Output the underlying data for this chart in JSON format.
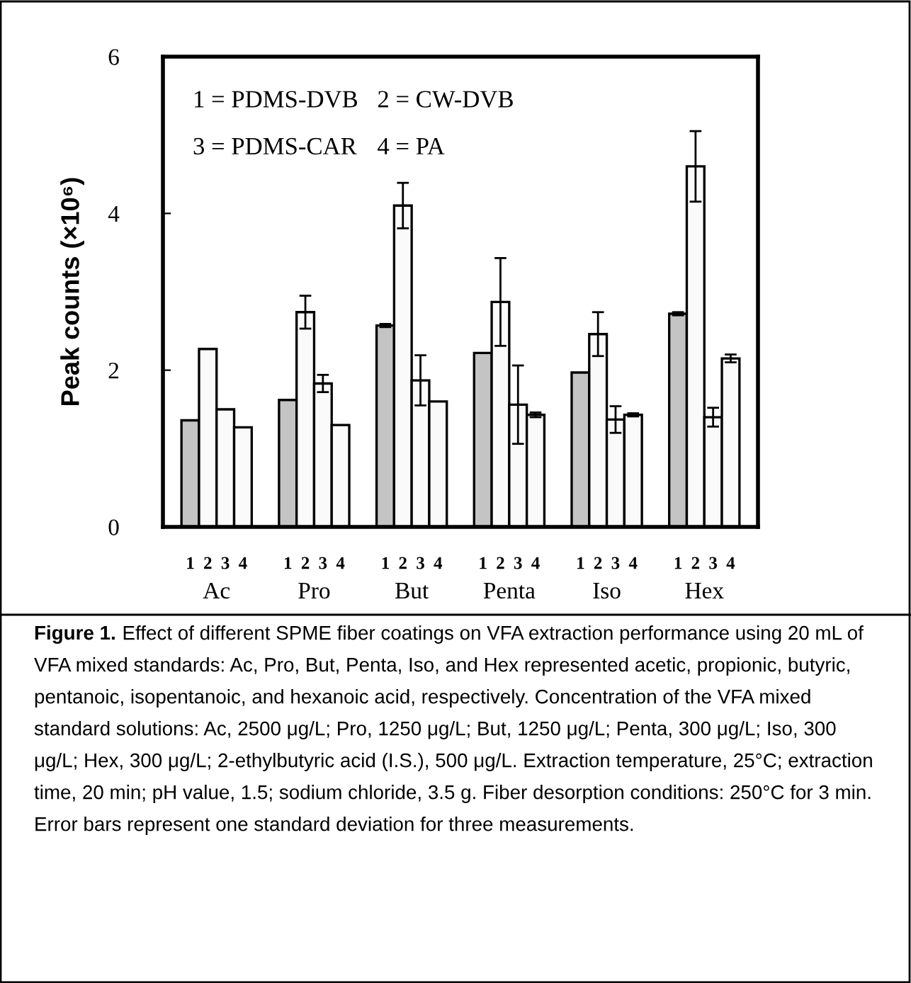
{
  "chart_data": {
    "type": "bar",
    "ylabel": "Peak counts (×10⁶)",
    "categories": [
      "Ac",
      "Pro",
      "But",
      "Penta",
      "Iso",
      "Hex"
    ],
    "series": [
      {
        "name": "1",
        "color": "#c4c4c4",
        "values": [
          1.36,
          1.62,
          2.57,
          2.22,
          1.97,
          2.72
        ],
        "errors": [
          null,
          null,
          0.02,
          null,
          null,
          0.02
        ]
      },
      {
        "name": "2",
        "color": "#fafafa",
        "values": [
          2.27,
          2.74,
          4.1,
          2.87,
          2.46,
          4.6
        ],
        "errors": [
          null,
          0.21,
          0.29,
          0.56,
          0.28,
          0.45
        ]
      },
      {
        "name": "3",
        "color": "#fafafa",
        "values": [
          1.5,
          1.83,
          1.87,
          1.56,
          1.37,
          1.4
        ],
        "errors": [
          null,
          0.11,
          0.32,
          0.5,
          0.17,
          0.12
        ]
      },
      {
        "name": "4",
        "color": "#fafafa",
        "values": [
          1.27,
          1.3,
          1.6,
          1.43,
          1.43,
          2.15
        ],
        "errors": [
          null,
          null,
          null,
          0.03,
          0.02,
          0.05
        ]
      }
    ],
    "ylim": [
      0,
      6
    ],
    "yticks": [
      0,
      2,
      4,
      6
    ],
    "grid": false,
    "legend": false,
    "annotations": [
      "1 = PDMS-DVB",
      "2 = CW-DVB",
      "3 = PDMS-CAR",
      "4 = PA",
      "Figure 1.",
      "Effect of different SPME fiber coatings on VFA extraction performance using 20 mL of VFA mixed standards: Ac, Pro, But, Penta, Iso, and Hex represented acetic, propionic, butyric, pentanoic, isopentanoic, and hexanoic acid, respectively. Concentration of the VFA mixed standard solutions: Ac, 2500 μg/L; Pro, 1250 μg/L; But, 1250 μg/L; Penta, 300 μg/L; Iso, 300 μg/L; Hex, 300 μg/L; 2-ethylbutyric acid (I.S.), 500 μg/L. Extraction temperature, 25°C; extraction time, 20 min; pH value, 1.5; sodium chloride, 3.5 g. Fiber desorption conditions: 250°C for 3 min. Error bars represent one standard deviation for three measurements."
    ]
  }
}
